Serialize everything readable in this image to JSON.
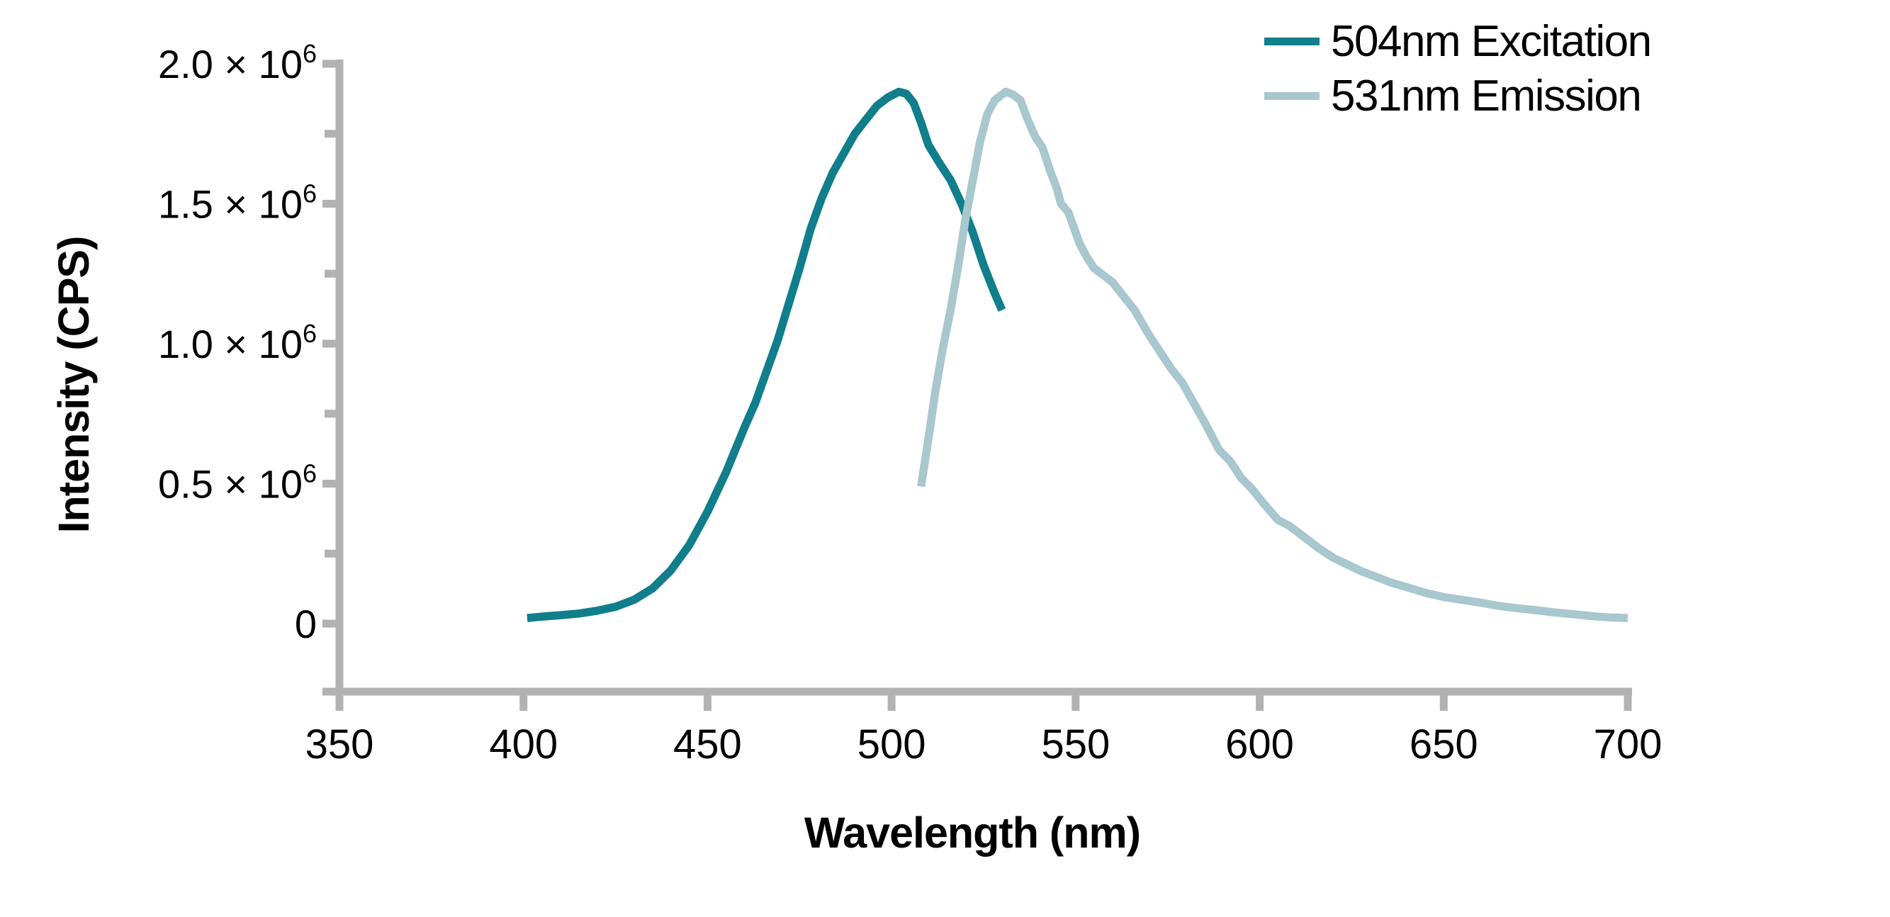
{
  "colors": {
    "background": "#FFFFFF",
    "axis": "#B2B2B2",
    "text": "#000000",
    "excitation": "#107E8B",
    "emission": "#A8C7CE"
  },
  "chart_data": {
    "type": "line",
    "title": "",
    "xlabel": "Wavelength (nm)",
    "ylabel": "Intensity (CPS)",
    "xlim": [
      350,
      700
    ],
    "ylim": [
      0,
      2000000
    ],
    "grid": false,
    "legend_position": "top-right",
    "x_ticks": [
      350,
      400,
      450,
      500,
      550,
      600,
      650,
      700
    ],
    "y_ticks": [
      {
        "value": 0,
        "label": "0",
        "sup": ""
      },
      {
        "value": 500000,
        "label": "0.5 × 10",
        "sup": "6"
      },
      {
        "value": 1000000,
        "label": "1.0 × 10",
        "sup": "6"
      },
      {
        "value": 1500000,
        "label": "1.5 × 10",
        "sup": "6"
      },
      {
        "value": 2000000,
        "label": "2.0 × 10",
        "sup": "6"
      }
    ],
    "y_minor_ticks": [
      250000,
      750000,
      1250000,
      1750000
    ],
    "legend": [
      {
        "label": "504nm Excitation",
        "color": "#107E8B"
      },
      {
        "label": "531nm Emission",
        "color": "#A8C7CE"
      }
    ],
    "series": [
      {
        "name": "504nm Excitation",
        "key": "excitation-curve",
        "color": "#107E8B",
        "peak_nm": 504,
        "points": [
          [
            401,
            20000
          ],
          [
            405,
            25000
          ],
          [
            410,
            30000
          ],
          [
            415,
            36000
          ],
          [
            420,
            46000
          ],
          [
            425,
            60000
          ],
          [
            430,
            85000
          ],
          [
            435,
            125000
          ],
          [
            440,
            190000
          ],
          [
            445,
            280000
          ],
          [
            450,
            400000
          ],
          [
            455,
            540000
          ],
          [
            460,
            700000
          ],
          [
            463,
            790000
          ],
          [
            466,
            900000
          ],
          [
            469,
            1010000
          ],
          [
            472,
            1140000
          ],
          [
            475,
            1270000
          ],
          [
            478,
            1410000
          ],
          [
            481,
            1520000
          ],
          [
            484,
            1610000
          ],
          [
            487,
            1680000
          ],
          [
            490,
            1750000
          ],
          [
            493,
            1800000
          ],
          [
            496,
            1850000
          ],
          [
            499,
            1880000
          ],
          [
            502,
            1900000
          ],
          [
            504,
            1893000
          ],
          [
            506,
            1860000
          ],
          [
            508,
            1790000
          ],
          [
            510,
            1710000
          ],
          [
            513,
            1645000
          ],
          [
            516,
            1585000
          ],
          [
            519,
            1500000
          ],
          [
            522,
            1400000
          ],
          [
            525,
            1280000
          ],
          [
            528,
            1180000
          ],
          [
            530,
            1120000
          ]
        ]
      },
      {
        "name": "531nm Emission",
        "key": "emission-curve",
        "color": "#A8C7CE",
        "peak_nm": 531,
        "points": [
          [
            508,
            490000
          ],
          [
            510,
            660000
          ],
          [
            512,
            840000
          ],
          [
            514,
            990000
          ],
          [
            516,
            1120000
          ],
          [
            518,
            1270000
          ],
          [
            520,
            1440000
          ],
          [
            522,
            1580000
          ],
          [
            524,
            1720000
          ],
          [
            526,
            1820000
          ],
          [
            528,
            1870000
          ],
          [
            531,
            1900000
          ],
          [
            533,
            1890000
          ],
          [
            535,
            1870000
          ],
          [
            537,
            1800000
          ],
          [
            539,
            1740000
          ],
          [
            541,
            1700000
          ],
          [
            543,
            1620000
          ],
          [
            545,
            1550000
          ],
          [
            546,
            1500000
          ],
          [
            548,
            1470000
          ],
          [
            551,
            1360000
          ],
          [
            553,
            1310000
          ],
          [
            555,
            1270000
          ],
          [
            558,
            1240000
          ],
          [
            560,
            1220000
          ],
          [
            563,
            1170000
          ],
          [
            566,
            1120000
          ],
          [
            570,
            1030000
          ],
          [
            573,
            970000
          ],
          [
            576,
            910000
          ],
          [
            579,
            860000
          ],
          [
            582,
            790000
          ],
          [
            585,
            720000
          ],
          [
            587,
            670000
          ],
          [
            589,
            620000
          ],
          [
            592,
            580000
          ],
          [
            595,
            520000
          ],
          [
            598,
            480000
          ],
          [
            601,
            430000
          ],
          [
            605,
            370000
          ],
          [
            608,
            350000
          ],
          [
            612,
            310000
          ],
          [
            616,
            270000
          ],
          [
            620,
            235000
          ],
          [
            624,
            210000
          ],
          [
            628,
            185000
          ],
          [
            632,
            165000
          ],
          [
            636,
            145000
          ],
          [
            640,
            130000
          ],
          [
            645,
            110000
          ],
          [
            650,
            95000
          ],
          [
            655,
            85000
          ],
          [
            660,
            75000
          ],
          [
            665,
            63000
          ],
          [
            670,
            55000
          ],
          [
            675,
            48000
          ],
          [
            680,
            40000
          ],
          [
            685,
            34000
          ],
          [
            690,
            27000
          ],
          [
            695,
            22000
          ],
          [
            700,
            20000
          ]
        ]
      }
    ]
  }
}
